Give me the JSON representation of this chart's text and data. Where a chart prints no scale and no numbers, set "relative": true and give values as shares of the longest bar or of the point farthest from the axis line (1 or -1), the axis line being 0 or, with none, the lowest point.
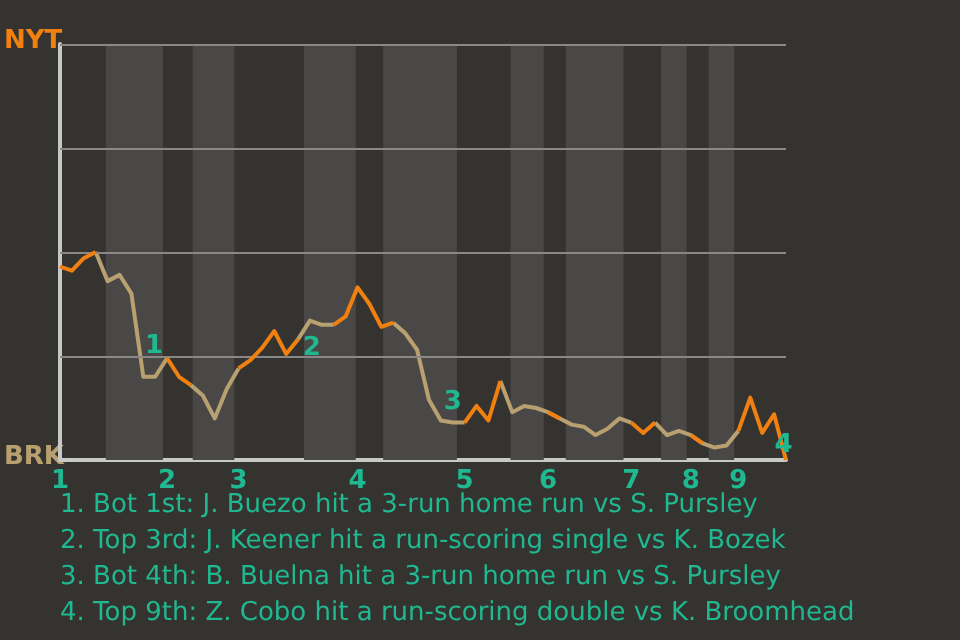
{
  "chart_data": {
    "type": "line",
    "relative": true,
    "categories": [
      "1",
      null,
      null,
      null,
      null,
      null,
      null,
      null,
      null,
      "2",
      null,
      null,
      null,
      null,
      null,
      "3",
      null,
      null,
      null,
      null,
      null,
      null,
      null,
      null,
      null,
      "4",
      null,
      null,
      null,
      null,
      null,
      null,
      null,
      null,
      "5",
      null,
      null,
      null,
      null,
      null,
      null,
      "6",
      null,
      null,
      null,
      null,
      null,
      null,
      "7",
      null,
      null,
      null,
      null,
      "8",
      null,
      null,
      null,
      "9",
      null,
      null,
      null,
      null
    ],
    "marker": "none",
    "line_style": "solid",
    "ref_lines": [
      {
        "axis": "y",
        "value": 0.5,
        "color": "#8a8886"
      },
      {
        "axis": "y",
        "value": 1,
        "color": "#8a8886"
      },
      {
        "axis": "y",
        "value": 1.5,
        "color": "#8a8886"
      },
      {
        "axis": "y",
        "value": 2,
        "color": "#8a8886"
      }
    ],
    "series": [
      {
        "color": "#f08010",
        "values": [
          0.93,
          0.91,
          0.97,
          1,
          null,
          null,
          null,
          null,
          null,
          0.49,
          0.4,
          0.36,
          null,
          null,
          null,
          0.44,
          0.48,
          0.54,
          0.62,
          0.51,
          0.58,
          null,
          null,
          0.65,
          0.69,
          0.83,
          0.75,
          0.64,
          0.66,
          null,
          null,
          null,
          null,
          null,
          0.18,
          0.26,
          0.19,
          0.38,
          null,
          null,
          null,
          0.23,
          0.2,
          null,
          null,
          null,
          null,
          null,
          0.18,
          0.13,
          0.18,
          null,
          null,
          0.12,
          0.08,
          null,
          null,
          0.14,
          0.3,
          0.13,
          0.22,
          0
        ]
      },
      {
        "color": "#b8a070",
        "values": [
          null,
          null,
          null,
          1,
          0.86,
          0.89,
          0.8,
          0.4,
          0.4,
          0.49,
          null,
          0.36,
          0.31,
          0.2,
          0.34,
          0.44,
          null,
          null,
          null,
          null,
          0.58,
          0.67,
          0.65,
          0.65,
          null,
          null,
          null,
          null,
          0.66,
          0.61,
          0.53,
          0.29,
          0.19,
          0.18,
          0.18,
          null,
          null,
          0.38,
          0.23,
          0.26,
          0.25,
          0.23,
          0.2,
          0.17,
          0.16,
          0.12,
          0.15,
          0.2,
          0.18,
          null,
          0.18,
          0.12,
          0.14,
          0.12,
          0.08,
          0.06,
          0.07,
          0.14,
          null,
          null,
          null,
          null
        ]
      }
    ],
    "annotations": [
      "NYT",
      "BRK",
      "1",
      "2",
      "3",
      "4",
      "1. Bot 1st: J. Buezo hit a 3-run home run vs S. Pursley",
      "2. Top 3rd: J. Keener hit a run-scoring single vs K. Bozek",
      "3. Bot 4th: B. Buelna hit a 3-run home run vs S. Pursley",
      "4. Top 9th: Z. Cobo hit a run-scoring double vs K. Broomhead"
    ]
  }
}
